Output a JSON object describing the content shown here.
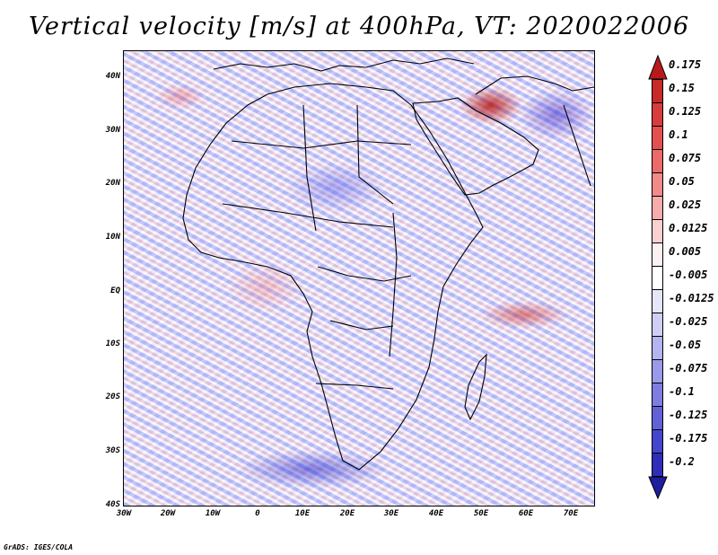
{
  "title": "Vertical velocity [m/s] at 400hPa, VT: 2020022006",
  "map": {
    "lat_labels": [
      "40N",
      "30N",
      "20N",
      "10N",
      "EQ",
      "10S",
      "20S",
      "30S",
      "40S"
    ],
    "lon_labels": [
      "30W",
      "20W",
      "10W",
      "0",
      "10E",
      "20E",
      "30E",
      "40E",
      "50E",
      "60E",
      "70E"
    ]
  },
  "colorbar": {
    "labels": [
      "0.175",
      "0.15",
      "0.125",
      "0.1",
      "0.075",
      "0.05",
      "0.025",
      "0.0125",
      "0.005",
      "-0.005",
      "-0.0125",
      "-0.025",
      "-0.05",
      "-0.075",
      "-0.1",
      "-0.125",
      "-0.175",
      "-0.2"
    ],
    "colors": [
      "#b81a1a",
      "#c82a2a",
      "#d83c3c",
      "#e45050",
      "#ec6a6a",
      "#f28a8a",
      "#f6acac",
      "#fad0d0",
      "#fdf0f0",
      "#ffffff",
      "#e6e6fb",
      "#cfcff6",
      "#b4b4f0",
      "#9a9aea",
      "#7e7ee2",
      "#6262d8",
      "#4646cc",
      "#2e2eb8",
      "#1e1e9e"
    ]
  },
  "credit": "GrADS: IGES/COLA"
}
